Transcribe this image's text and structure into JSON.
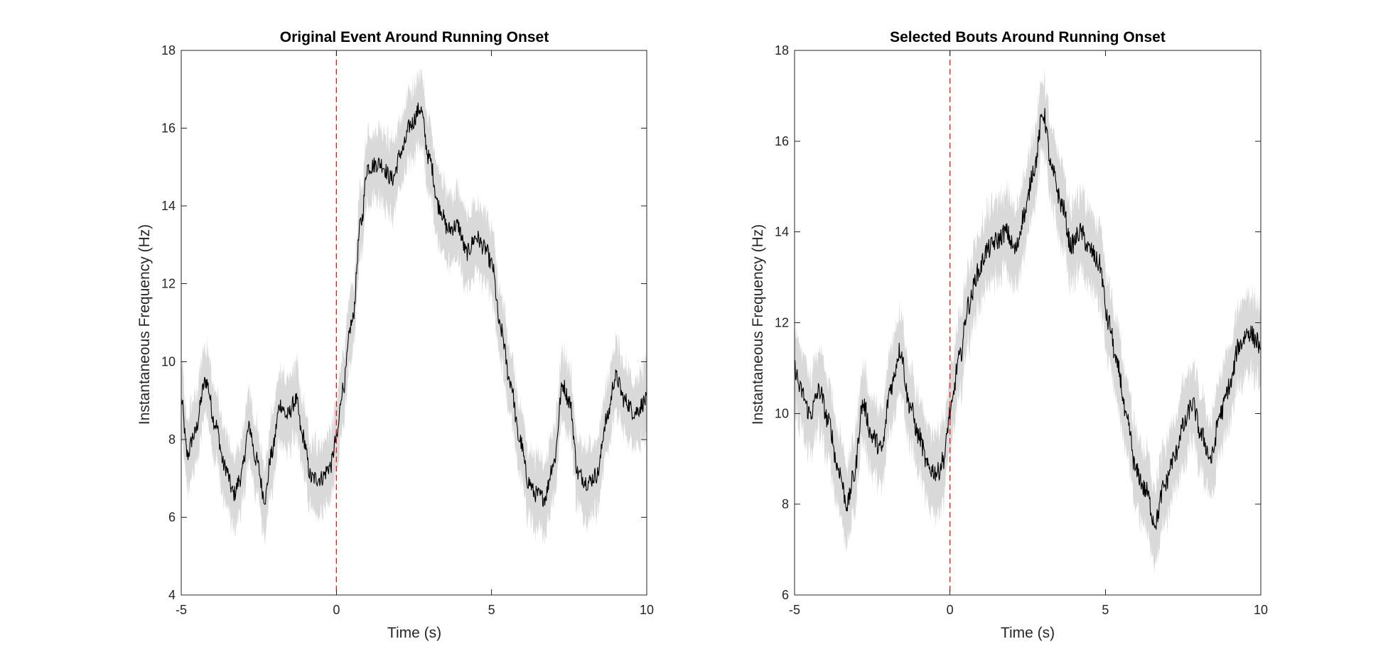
{
  "colors": {
    "mean_line": "#000000",
    "sem_band": "#d9d9d9",
    "onset_marker": "#ff0000",
    "axes": "#262626"
  },
  "chart_data": [
    {
      "type": "line",
      "title": "Original Event Around Running Onset",
      "xlabel": "Time (s)",
      "ylabel": "Instantaneous Frequency (Hz)",
      "xlim": [
        -5,
        10
      ],
      "ylim": [
        4,
        18
      ],
      "xticks": [
        -5,
        0,
        5,
        10
      ],
      "yticks": [
        4,
        6,
        8,
        10,
        12,
        14,
        16,
        18
      ],
      "grid": false,
      "onset_marker": {
        "x": 0,
        "style": "dashed",
        "color": "red"
      },
      "series": [
        {
          "style": "mean_with_shaded_sem",
          "band_halfwidth": 0.9,
          "x": [
            -5,
            -4.8,
            -4.6,
            -4.2,
            -3.9,
            -3.6,
            -3.3,
            -3.1,
            -2.8,
            -2.6,
            -2.3,
            -2.1,
            -1.8,
            -1.6,
            -1.3,
            -1.1,
            -0.8,
            -0.5,
            -0.2,
            0,
            0.2,
            0.5,
            0.8,
            1.0,
            1.4,
            1.8,
            2.1,
            2.4,
            2.7,
            3.0,
            3.3,
            3.6,
            3.9,
            4.2,
            4.5,
            4.8,
            5.0,
            5.3,
            5.6,
            5.9,
            6.2,
            6.4,
            6.7,
            7.0,
            7.3,
            7.5,
            7.8,
            8.1,
            8.4,
            8.7,
            9.0,
            9.3,
            9.6,
            10
          ],
          "y": [
            9.0,
            7.6,
            8.1,
            9.5,
            8.4,
            7.3,
            6.6,
            7.0,
            8.3,
            7.5,
            6.5,
            7.6,
            8.9,
            8.6,
            9.0,
            8.1,
            7.0,
            7.0,
            7.3,
            8.0,
            9.3,
            11.0,
            13.6,
            15.0,
            15.1,
            14.7,
            15.4,
            16.1,
            16.5,
            15.2,
            14.0,
            13.4,
            13.5,
            12.8,
            13.2,
            12.9,
            12.5,
            10.8,
            9.5,
            8.0,
            6.9,
            6.6,
            6.5,
            7.4,
            9.4,
            9.0,
            7.1,
            6.9,
            7.1,
            8.5,
            9.6,
            9.0,
            8.7,
            9.0
          ]
        }
      ]
    },
    {
      "type": "line",
      "title": "Selected Bouts Around Running Onset",
      "xlabel": "Time (s)",
      "ylabel": "Instantaneous Frequency (Hz)",
      "xlim": [
        -5,
        10
      ],
      "ylim": [
        6,
        18
      ],
      "xticks": [
        -5,
        0,
        5,
        10
      ],
      "yticks": [
        6,
        8,
        10,
        12,
        14,
        16,
        18
      ],
      "grid": false,
      "onset_marker": {
        "x": 0,
        "style": "dashed",
        "color": "red"
      },
      "series": [
        {
          "style": "mean_with_shaded_sem",
          "band_halfwidth": 0.85,
          "x": [
            -5,
            -4.8,
            -4.5,
            -4.2,
            -3.9,
            -3.6,
            -3.3,
            -3.1,
            -2.8,
            -2.5,
            -2.2,
            -1.9,
            -1.6,
            -1.3,
            -1.0,
            -0.7,
            -0.4,
            -0.2,
            0,
            0.3,
            0.6,
            0.9,
            1.2,
            1.5,
            1.8,
            2.1,
            2.4,
            2.7,
            3.0,
            3.3,
            3.6,
            3.9,
            4.2,
            4.5,
            4.8,
            5.1,
            5.4,
            5.7,
            6.0,
            6.3,
            6.6,
            6.9,
            7.2,
            7.5,
            7.8,
            8.1,
            8.4,
            8.7,
            9.0,
            9.3,
            9.6,
            9.9,
            10
          ],
          "y": [
            11.0,
            10.5,
            10.0,
            10.5,
            9.8,
            8.8,
            8.0,
            8.6,
            10.2,
            9.5,
            9.2,
            10.6,
            11.4,
            10.2,
            9.5,
            8.8,
            8.7,
            9.0,
            10.0,
            11.2,
            12.4,
            13.1,
            13.6,
            13.8,
            14.0,
            13.6,
            14.4,
            15.4,
            16.6,
            15.3,
            14.6,
            13.7,
            14.0,
            13.6,
            13.3,
            12.0,
            11.0,
            9.8,
            8.7,
            8.3,
            7.6,
            8.4,
            9.0,
            9.7,
            10.2,
            9.5,
            9.0,
            10.0,
            10.6,
            11.5,
            11.8,
            11.6,
            11.2
          ]
        }
      ]
    }
  ]
}
